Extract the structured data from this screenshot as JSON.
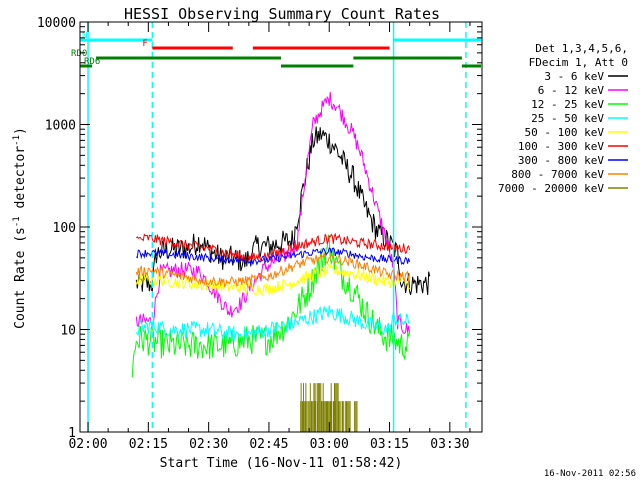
{
  "chart_data": {
    "type": "line",
    "title": "HESSI Observing Summary Count Rates",
    "xlabel": "Start Time (16-Nov-11 01:58:42)",
    "ylabel_main": "Count Rate (s",
    "ylabel_sup1": "-1",
    "ylabel_mid": " detector",
    "ylabel_sup2": "-1",
    "ylabel_end": ")",
    "footer": "16-Nov-2011 02:56",
    "xlim": [
      "01:58",
      "03:38"
    ],
    "ylim": [
      1,
      10000
    ],
    "yscale": "log",
    "xticks": [
      {
        "t": "02:00",
        "label": "02:00"
      },
      {
        "t": "02:15",
        "label": "02:15"
      },
      {
        "t": "02:30",
        "label": "02:30"
      },
      {
        "t": "02:45",
        "label": "02:45"
      },
      {
        "t": "03:00",
        "label": "03:00"
      },
      {
        "t": "03:15",
        "label": "03:15"
      },
      {
        "t": "03:30",
        "label": "03:30"
      }
    ],
    "yticks": [
      {
        "v": 1,
        "label": "1"
      },
      {
        "v": 10,
        "label": "10"
      },
      {
        "v": 100,
        "label": "100"
      },
      {
        "v": 1000,
        "label": "1000"
      },
      {
        "v": 10000,
        "label": "10000"
      }
    ],
    "legend": {
      "position": "right",
      "header": [
        "Det 1,3,4,5,6,",
        "FDecim 1, Att 0"
      ],
      "entries": [
        {
          "label": "3 - 6 keV",
          "color": "#000000"
        },
        {
          "label": "6 - 12 keV",
          "color": "#ff00ff"
        },
        {
          "label": "12 - 25 keV",
          "color": "#00ff00"
        },
        {
          "label": "25 - 50 keV",
          "color": "#00ffff"
        },
        {
          "label": "50 - 100 keV",
          "color": "#ffff00"
        },
        {
          "label": "100 - 300 keV",
          "color": "#ff0000"
        },
        {
          "label": "300 - 800 keV",
          "color": "#0000ff"
        },
        {
          "label": "800 - 7000 keV",
          "color": "#ff8000"
        },
        {
          "label": "7000 - 20000 keV",
          "color": "#808000"
        }
      ]
    },
    "flags": [
      {
        "label": "N",
        "color": "#00ffff",
        "segments": [
          [
            "01:58",
            "02:16"
          ],
          [
            "03:16",
            "03:38"
          ]
        ]
      },
      {
        "label": "F",
        "color": "#ff0000",
        "segments": [
          [
            "02:16",
            "02:36"
          ],
          [
            "02:41",
            "03:15"
          ]
        ]
      },
      {
        "label": "RD0",
        "color": "#008000",
        "segments": [
          [
            "02:02",
            "02:48"
          ],
          [
            "03:06",
            "03:33"
          ]
        ]
      },
      {
        "label": "RD6",
        "color": "#008000",
        "segments": [
          [
            "01:58",
            "02:01"
          ],
          [
            "02:48",
            "03:06"
          ],
          [
            "03:33",
            "03:38"
          ]
        ]
      }
    ],
    "vertical_lines": [
      {
        "t": "02:00",
        "color": "#00ffff",
        "style": "solid"
      },
      {
        "t": "02:16",
        "color": "#00ffff",
        "style": "dashed"
      },
      {
        "t": "03:16",
        "color": "#00ffff",
        "style": "solid"
      },
      {
        "t": "03:34",
        "color": "#00ffff",
        "style": "dashed"
      }
    ],
    "series": [
      {
        "name": "3 - 6 keV",
        "color": "#000000",
        "noise": 0.12,
        "x": [
          "02:12",
          "02:16",
          "02:17",
          "02:20",
          "02:25",
          "02:28",
          "02:30",
          "02:33",
          "02:36",
          "02:39",
          "02:42",
          "02:45",
          "02:48",
          "02:51",
          "02:54",
          "02:56",
          "02:58",
          "03:00",
          "03:02",
          "03:04",
          "03:06",
          "03:09",
          "03:12",
          "03:15",
          "03:17",
          "03:18",
          "03:20",
          "03:25"
        ],
        "y": [
          28,
          28,
          55,
          60,
          62,
          75,
          60,
          50,
          50,
          45,
          65,
          65,
          70,
          75,
          300,
          700,
          800,
          700,
          550,
          400,
          300,
          150,
          90,
          70,
          55,
          30,
          28,
          28
        ]
      },
      {
        "name": "6 - 12 keV",
        "color": "#ff00ff",
        "noise": 0.08,
        "x": [
          "02:12",
          "02:16",
          "02:18",
          "02:22",
          "02:25",
          "02:28",
          "02:30",
          "02:32",
          "02:35",
          "02:38",
          "02:41",
          "02:44",
          "02:47",
          "02:50",
          "02:52",
          "02:54",
          "02:56",
          "02:58",
          "03:00",
          "03:02",
          "03:04",
          "03:06",
          "03:08",
          "03:11",
          "03:14",
          "03:16",
          "03:17",
          "03:19",
          "03:20"
        ],
        "y": [
          12,
          12,
          36,
          38,
          38,
          36,
          28,
          22,
          15,
          18,
          28,
          40,
          48,
          55,
          70,
          300,
          1000,
          1400,
          1800,
          1500,
          1100,
          800,
          500,
          200,
          80,
          40,
          12,
          10,
          10
        ]
      },
      {
        "name": "12 - 25 keV",
        "color": "#00ff00",
        "noise": 0.15,
        "x": [
          "02:11",
          "02:12",
          "02:14",
          "02:20",
          "02:25",
          "02:30",
          "02:35",
          "02:40",
          "02:45",
          "02:50",
          "02:55",
          "02:57",
          "02:59",
          "03:00",
          "03:01",
          "03:03",
          "03:06",
          "03:09",
          "03:12",
          "03:15",
          "03:16",
          "03:18",
          "03:20"
        ],
        "y": [
          4,
          8,
          8,
          7,
          7,
          7,
          7,
          8,
          8,
          12,
          25,
          40,
          55,
          70,
          50,
          35,
          25,
          15,
          10,
          8,
          8,
          7,
          7
        ]
      },
      {
        "name": "25 - 50 keV",
        "color": "#00ffff",
        "noise": 0.08,
        "x": [
          "02:12",
          "02:16",
          "02:20",
          "02:25",
          "02:30",
          "02:35",
          "02:40",
          "02:45",
          "02:50",
          "02:55",
          "03:00",
          "03:05",
          "03:10",
          "03:15",
          "03:16",
          "03:18",
          "03:20"
        ],
        "y": [
          10,
          11,
          10,
          10,
          10,
          9,
          9,
          10,
          11,
          13,
          15,
          13,
          11,
          10,
          13,
          12,
          12
        ]
      },
      {
        "name": "50 - 100 keV",
        "color": "#ffff00",
        "noise": 0.06,
        "x": [
          "02:12",
          "02:16",
          "02:20",
          "02:25",
          "02:30",
          "02:35",
          "02:40",
          "02:45",
          "02:50",
          "02:55",
          "03:00",
          "03:05",
          "03:10",
          "03:15",
          "03:16",
          "03:20"
        ],
        "y": [
          30,
          31,
          30,
          28,
          27,
          26,
          25,
          25,
          28,
          33,
          38,
          36,
          32,
          29,
          30,
          28
        ]
      },
      {
        "name": "100 - 300 keV",
        "color": "#ff0000",
        "noise": 0.05,
        "x": [
          "02:12",
          "02:15",
          "02:20",
          "02:25",
          "02:30",
          "02:35",
          "02:40",
          "02:45",
          "02:50",
          "02:55",
          "03:00",
          "03:05",
          "03:10",
          "03:14",
          "03:16",
          "03:20"
        ],
        "y": [
          75,
          78,
          72,
          66,
          62,
          55,
          50,
          52,
          62,
          70,
          78,
          72,
          68,
          65,
          62,
          62
        ]
      },
      {
        "name": "300 - 800 keV",
        "color": "#0000ff",
        "noise": 0.04,
        "x": [
          "02:12",
          "02:15",
          "02:20",
          "02:25",
          "02:30",
          "02:35",
          "02:40",
          "02:45",
          "02:50",
          "02:55",
          "03:00",
          "03:05",
          "03:10",
          "03:15",
          "03:20"
        ],
        "y": [
          55,
          56,
          54,
          52,
          50,
          48,
          47,
          48,
          52,
          56,
          58,
          55,
          50,
          48,
          47
        ]
      },
      {
        "name": "800 - 7000 keV",
        "color": "#ff8000",
        "noise": 0.05,
        "x": [
          "02:12",
          "02:15",
          "02:20",
          "02:25",
          "02:30",
          "02:35",
          "02:40",
          "02:45",
          "02:50",
          "02:55",
          "03:00",
          "03:05",
          "03:10",
          "03:15",
          "03:20"
        ],
        "y": [
          36,
          38,
          35,
          32,
          30,
          29,
          30,
          33,
          40,
          47,
          50,
          46,
          40,
          34,
          33
        ]
      },
      {
        "name": "7000 - 20000 keV",
        "color": "#808000",
        "noise": 0.0,
        "x": [
          "02:52",
          "02:53",
          "02:54",
          "02:55",
          "02:56",
          "02:57",
          "02:58",
          "02:59",
          "03:00",
          "03:01",
          "03:02",
          "03:03",
          "03:04",
          "03:05",
          "03:06",
          "03:07"
        ],
        "y": [
          2,
          3,
          2,
          3,
          2,
          3,
          2,
          3,
          2,
          3,
          2,
          2,
          2,
          1,
          2,
          1
        ]
      }
    ]
  }
}
